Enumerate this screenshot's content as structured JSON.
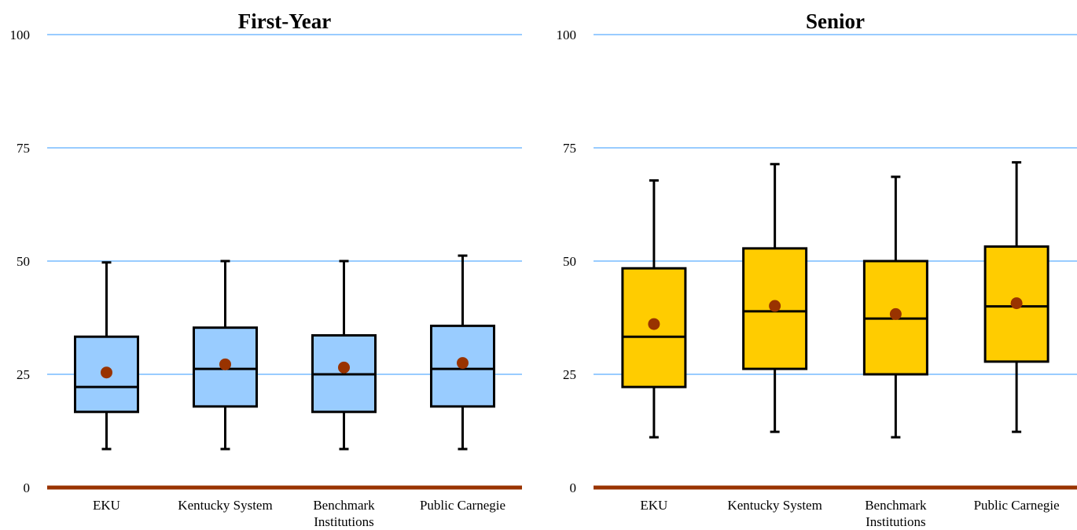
{
  "chart_data": [
    {
      "type": "boxplot",
      "title": "First-Year",
      "xlabel": "",
      "ylabel": "",
      "ylim": [
        0,
        100
      ],
      "yticks": [
        0,
        25,
        50,
        75,
        100
      ],
      "grid": true,
      "box_color": "#99ccff",
      "categories": [
        "EKU",
        "Kentucky System",
        "Benchmark Institutions",
        "Public Carnegie"
      ],
      "category_lines": [
        [
          "EKU"
        ],
        [
          "Kentucky System"
        ],
        [
          "Benchmark",
          "Institutions"
        ],
        [
          "Public Carnegie"
        ]
      ],
      "boxes": [
        {
          "whisker_low": 8.5,
          "q1": 16.7,
          "median": 22.2,
          "q3": 33.3,
          "whisker_high": 49.7,
          "mean": 25.4
        },
        {
          "whisker_low": 8.5,
          "q1": 17.9,
          "median": 26.2,
          "q3": 35.3,
          "whisker_high": 50.0,
          "mean": 27.2
        },
        {
          "whisker_low": 8.5,
          "q1": 16.7,
          "median": 25.0,
          "q3": 33.6,
          "whisker_high": 50.0,
          "mean": 26.5
        },
        {
          "whisker_low": 8.5,
          "q1": 17.9,
          "median": 26.2,
          "q3": 35.7,
          "whisker_high": 51.2,
          "mean": 27.5
        }
      ]
    },
    {
      "type": "boxplot",
      "title": "Senior",
      "xlabel": "",
      "ylabel": "",
      "ylim": [
        0,
        100
      ],
      "yticks": [
        0,
        25,
        50,
        75,
        100
      ],
      "grid": true,
      "box_color": "#ffcc00",
      "categories": [
        "EKU",
        "Kentucky System",
        "Benchmark Institutions",
        "Public Carnegie"
      ],
      "category_lines": [
        [
          "EKU"
        ],
        [
          "Kentucky System"
        ],
        [
          "Benchmark",
          "Institutions"
        ],
        [
          "Public Carnegie"
        ]
      ],
      "boxes": [
        {
          "whisker_low": 11.1,
          "q1": 22.2,
          "median": 33.3,
          "q3": 48.4,
          "whisker_high": 67.8,
          "mean": 36.1
        },
        {
          "whisker_low": 12.3,
          "q1": 26.2,
          "median": 38.9,
          "q3": 52.8,
          "whisker_high": 71.4,
          "mean": 40.1
        },
        {
          "whisker_low": 11.1,
          "q1": 25.0,
          "median": 37.3,
          "q3": 50.0,
          "whisker_high": 68.6,
          "mean": 38.3
        },
        {
          "whisker_low": 12.3,
          "q1": 27.8,
          "median": 40.0,
          "q3": 53.2,
          "whisker_high": 71.8,
          "mean": 40.7
        }
      ]
    }
  ],
  "colors": {
    "gridline": "#99ccff",
    "baseline": "#993300",
    "mean_marker": "#993300",
    "box_outline": "#000000"
  }
}
